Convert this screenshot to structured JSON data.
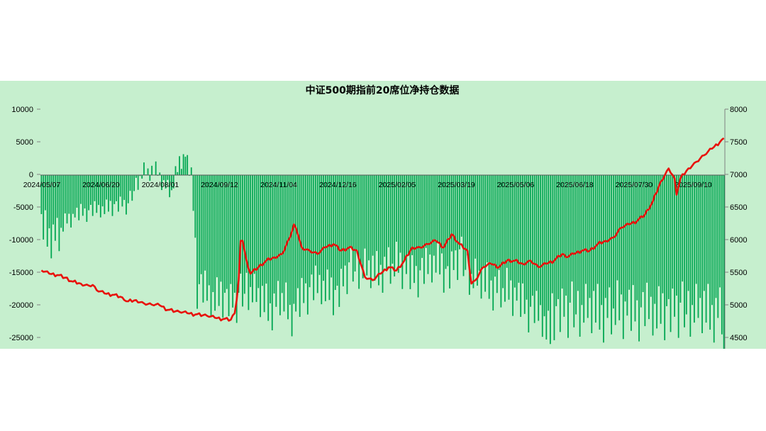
{
  "chart_data": {
    "type": "bar+line",
    "title": "中证500期指前20席位净持仓数据",
    "x_tick_labels": [
      "2024/05/07",
      "2024/06/20",
      "2024/08/01",
      "2024/09/12",
      "2024/11/04",
      "2024/12/16",
      "2025/02/05",
      "2025/03/19",
      "2025/05/06",
      "2025/06/18",
      "2025/07/30",
      "2025/09/10"
    ],
    "y_left": {
      "ticks": [
        "10000",
        "5000",
        "0",
        "-5000",
        "-10000",
        "-15000",
        "-20000",
        "-25000"
      ],
      "range": [
        -26500,
        10000
      ]
    },
    "y_right": {
      "ticks": [
        "8000",
        "7500",
        "7000",
        "6500",
        "6000",
        "5500",
        "5000",
        "4500"
      ],
      "range": [
        4400,
        8000
      ]
    },
    "grid": false,
    "legend": "none",
    "colors": {
      "bars": "#00a651",
      "line": "#e8120c",
      "background": "#c6efce"
    },
    "bar_series": {
      "trend_index": [
        0,
        8,
        13,
        20,
        27,
        34,
        40,
        44,
        48,
        52,
        55,
        59,
        62,
        66,
        70,
        73,
        76,
        77,
        79,
        86,
        92,
        98,
        104,
        110,
        116,
        122,
        126,
        134,
        142,
        150,
        156,
        162,
        170,
        175,
        182,
        188,
        194,
        200,
        206,
        212,
        218,
        224,
        232,
        240,
        246,
        250,
        254,
        258
      ],
      "trend_value": [
        -8500,
        -9500,
        -7000,
        -5800,
        -5500,
        -5000,
        -4500,
        -4800,
        -1500,
        500,
        200,
        800,
        -1500,
        -2500,
        2000,
        3000,
        -200,
        -5000,
        -17000,
        -19000,
        -18500,
        -20000,
        -17500,
        -19000,
        -20500,
        -18500,
        -22000,
        -18000,
        -17000,
        -18500,
        -14500,
        -14500,
        -15000,
        -14000,
        -14000,
        -15500,
        -15000,
        -13000,
        -15500,
        -12500,
        -16000,
        -16500,
        -17500,
        -18500,
        -20500,
        -21000,
        -22000,
        -24500
      ],
      "variation": [
        1800,
        -900,
        2400,
        -1500,
        600,
        -2600,
        1200,
        -500,
        2100,
        -1900,
        300,
        -1100,
        2700,
        -700,
        1500,
        -2300,
        900,
        -300,
        1900,
        -1600,
        2300,
        -800,
        1000,
        -2500,
        400,
        1700,
        -1200,
        2500,
        -600,
        1300,
        -2000,
        700,
        -1400,
        2200,
        -1000,
        1600,
        -2400,
        500,
        1100,
        -1700,
        2000,
        -400,
        1400,
        -2200,
        800,
        2600,
        -1300,
        -200,
        1800,
        -2100,
        600,
        -900,
        2400,
        -500,
        1200,
        -1800
      ]
    },
    "line_series": {
      "points": [
        [
          0,
          5550
        ],
        [
          4,
          5500
        ],
        [
          8,
          5480
        ],
        [
          12,
          5440
        ],
        [
          16,
          5380
        ],
        [
          20,
          5350
        ],
        [
          24,
          5320
        ],
        [
          26,
          5330
        ],
        [
          28,
          5250
        ],
        [
          32,
          5200
        ],
        [
          36,
          5180
        ],
        [
          40,
          5150
        ],
        [
          42,
          5100
        ],
        [
          44,
          5080
        ],
        [
          48,
          5100
        ],
        [
          52,
          5050
        ],
        [
          56,
          5030
        ],
        [
          60,
          5020
        ],
        [
          64,
          4950
        ],
        [
          68,
          4930
        ],
        [
          70,
          4920
        ],
        [
          74,
          4900
        ],
        [
          78,
          4880
        ],
        [
          82,
          4870
        ],
        [
          84,
          4860
        ],
        [
          88,
          4830
        ],
        [
          92,
          4810
        ],
        [
          96,
          4800
        ],
        [
          98,
          4900
        ],
        [
          99,
          5100
        ],
        [
          100,
          5400
        ],
        [
          101,
          6000
        ],
        [
          102,
          6000
        ],
        [
          104,
          5700
        ],
        [
          106,
          5500
        ],
        [
          110,
          5600
        ],
        [
          114,
          5700
        ],
        [
          118,
          5750
        ],
        [
          122,
          5800
        ],
        [
          126,
          6050
        ],
        [
          128,
          6250
        ],
        [
          130,
          6100
        ],
        [
          132,
          5900
        ],
        [
          136,
          5850
        ],
        [
          140,
          5800
        ],
        [
          144,
          5900
        ],
        [
          148,
          5950
        ],
        [
          152,
          5850
        ],
        [
          156,
          5900
        ],
        [
          160,
          5850
        ],
        [
          164,
          5450
        ],
        [
          168,
          5400
        ],
        [
          172,
          5500
        ],
        [
          176,
          5600
        ],
        [
          180,
          5550
        ],
        [
          184,
          5700
        ],
        [
          188,
          5900
        ],
        [
          192,
          5900
        ],
        [
          196,
          5950
        ],
        [
          200,
          6000
        ],
        [
          204,
          5900
        ],
        [
          208,
          6100
        ],
        [
          212,
          5950
        ],
        [
          216,
          5850
        ],
        [
          218,
          5350
        ],
        [
          220,
          5400
        ],
        [
          224,
          5600
        ],
        [
          228,
          5650
        ],
        [
          232,
          5600
        ],
        [
          236,
          5700
        ],
        [
          240,
          5700
        ],
        [
          244,
          5650
        ],
        [
          248,
          5700
        ],
        [
          252,
          5600
        ],
        [
          256,
          5650
        ],
        [
          260,
          5700
        ],
        [
          264,
          5800
        ],
        [
          266,
          5750
        ],
        [
          270,
          5800
        ],
        [
          274,
          5850
        ],
        [
          278,
          5850
        ],
        [
          282,
          5950
        ],
        [
          286,
          6000
        ],
        [
          290,
          6050
        ],
        [
          294,
          6200
        ],
        [
          298,
          6250
        ],
        [
          302,
          6300
        ],
        [
          306,
          6400
        ],
        [
          310,
          6600
        ],
        [
          314,
          6900
        ],
        [
          318,
          7100
        ],
        [
          321,
          6950
        ],
        [
          322,
          6700
        ],
        [
          324,
          6950
        ],
        [
          328,
          7100
        ],
        [
          332,
          7200
        ],
        [
          336,
          7300
        ],
        [
          340,
          7400
        ],
        [
          344,
          7500
        ],
        [
          346,
          7560
        ]
      ]
    }
  }
}
